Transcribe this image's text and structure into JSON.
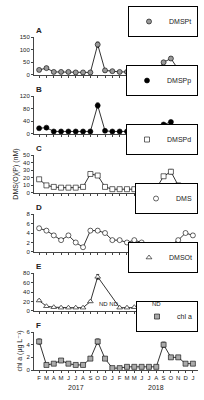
{
  "chart_data": [
    {
      "type": "line",
      "title": "A",
      "categories": [
        "F",
        "M",
        "A",
        "M",
        "J",
        "J",
        "A",
        "S",
        "O",
        "D",
        "J",
        "F",
        "M",
        "M",
        "J",
        "J",
        "A",
        "S",
        "O",
        "N",
        "D",
        "J"
      ],
      "series": [
        {
          "name": "DMSPt",
          "color": "#999999",
          "marker": "circle",
          "values": [
            20,
            27,
            12,
            12,
            12,
            10,
            10,
            10,
            120,
            18,
            15,
            12,
            12,
            10,
            10,
            10,
            12,
            50,
            65,
            22,
            18,
            15
          ],
          "errors": [
            2,
            2,
            1,
            1,
            1,
            1,
            1,
            1,
            10,
            2,
            2,
            2,
            2,
            1,
            1,
            1,
            2,
            5,
            5,
            2,
            2,
            2
          ]
        }
      ],
      "ylim": [
        0,
        150
      ],
      "yticks": [
        0,
        50,
        100,
        150
      ],
      "grid": false,
      "legend": "above",
      "tick_labels": "y"
    },
    {
      "type": "line",
      "title": "B",
      "categories": [
        "F",
        "M",
        "A",
        "M",
        "J",
        "J",
        "A",
        "S",
        "O",
        "D",
        "J",
        "F",
        "M",
        "M",
        "J",
        "J",
        "A",
        "S",
        "O",
        "N",
        "D",
        "J"
      ],
      "series": [
        {
          "name": "DMSPp",
          "color": "#000000",
          "marker": "circle",
          "values": [
            18,
            20,
            8,
            8,
            8,
            8,
            8,
            8,
            90,
            10,
            8,
            8,
            8,
            8,
            8,
            8,
            8,
            30,
            38,
            10,
            8,
            8
          ],
          "errors": [
            2,
            2,
            1,
            1,
            1,
            1,
            1,
            1,
            8,
            1,
            1,
            1,
            1,
            1,
            1,
            1,
            1,
            3,
            3,
            1,
            1,
            1
          ]
        }
      ],
      "ylim": [
        0,
        120
      ],
      "yticks": [
        0,
        40,
        80,
        120
      ],
      "grid": false,
      "legend": "above",
      "tick_labels": "y"
    },
    {
      "type": "line",
      "title": "C",
      "ylabel": "DMS(O)(P) (nM)",
      "categories": [
        "F",
        "M",
        "A",
        "M",
        "J",
        "J",
        "A",
        "S",
        "O",
        "D",
        "J",
        "F",
        "M",
        "M",
        "J",
        "J",
        "A",
        "S",
        "O",
        "N",
        "D",
        "J"
      ],
      "series": [
        {
          "name": "DMSPd",
          "color": "#ffffff",
          "marker": "square",
          "values": [
            18,
            10,
            8,
            7,
            7,
            7,
            8,
            25,
            23,
            8,
            5,
            5,
            5,
            5,
            4,
            5,
            6,
            22,
            28,
            10,
            8,
            5
          ],
          "errors": [
            2,
            1,
            1,
            1,
            1,
            1,
            1,
            2,
            2,
            1,
            1,
            1,
            1,
            1,
            1,
            1,
            1,
            2,
            3,
            1,
            1,
            1
          ]
        }
      ],
      "ylim": [
        0,
        50
      ],
      "yticks": [
        0,
        10,
        20,
        30,
        40,
        50
      ],
      "grid": false,
      "legend": "above",
      "tick_labels": "y"
    },
    {
      "type": "line",
      "title": "D",
      "categories": [
        "F",
        "M",
        "A",
        "M",
        "J",
        "J",
        "A",
        "S",
        "O",
        "D",
        "J",
        "F",
        "M",
        "M",
        "J",
        "J",
        "A",
        "S",
        "O",
        "N",
        "D",
        "J"
      ],
      "series": [
        {
          "name": "DMS",
          "color": "#ffffff",
          "marker": "circle",
          "values": [
            5.0,
            4.5,
            3.5,
            2.5,
            3.5,
            2.0,
            1.0,
            4.5,
            4.5,
            4.0,
            2.5,
            2.5,
            2.0,
            2.5,
            2.0,
            1.5,
            1.0,
            0.5,
            1.5,
            2.5,
            4.0,
            3.5
          ],
          "errors": [
            0.3,
            0.3,
            0.3,
            0.2,
            0.3,
            0.2,
            0.1,
            0.3,
            0.3,
            0.3,
            0.2,
            0.2,
            0.2,
            0.2,
            0.2,
            0.2,
            0.1,
            0.1,
            0.2,
            0.2,
            0.3,
            0.3
          ]
        }
      ],
      "ylim": [
        0,
        8
      ],
      "yticks": [
        0,
        2,
        4,
        6,
        8
      ],
      "grid": false,
      "legend": "above",
      "tick_labels": "y"
    },
    {
      "type": "line",
      "title": "E",
      "categories": [
        "F",
        "M",
        "A",
        "M",
        "J",
        "J",
        "A",
        "S",
        "O",
        "D",
        "J",
        "F",
        "M",
        "M",
        "J",
        "J",
        "A",
        "S",
        "O",
        "N",
        "D",
        "J"
      ],
      "series": [
        {
          "name": "DMSOt",
          "color": "#ffffff",
          "marker": "triangle",
          "values": [
            22,
            10,
            8,
            7,
            7,
            7,
            7,
            20,
            72,
            null,
            null,
            7,
            7,
            8,
            7,
            7,
            null,
            5,
            15,
            8,
            5,
            5
          ],
          "errors": [
            2,
            1,
            1,
            1,
            1,
            1,
            1,
            2,
            5,
            null,
            null,
            1,
            1,
            1,
            1,
            1,
            null,
            1,
            2,
            1,
            1,
            1
          ]
        }
      ],
      "ylim": [
        0,
        80
      ],
      "yticks": [
        0,
        20,
        40,
        60,
        80
      ],
      "annotations": [
        {
          "text": "ND ND",
          "x": 9.5,
          "y": 4.8
        },
        {
          "text": "ND",
          "x": 16,
          "y": 4.8
        }
      ],
      "grid": false,
      "legend": "above",
      "tick_labels": "y"
    },
    {
      "type": "line",
      "title": "F",
      "ylabel": "chl a (µg L⁻¹)",
      "categories": [
        "F",
        "M",
        "A",
        "M",
        "J",
        "J",
        "A",
        "S",
        "O",
        "D",
        "J",
        "F",
        "M",
        "M",
        "J",
        "J",
        "A",
        "S",
        "O",
        "N",
        "D",
        "J"
      ],
      "series": [
        {
          "name": "chl a",
          "color": "#aaaaaa",
          "marker": "square",
          "values": [
            4.5,
            0.8,
            1.0,
            1.5,
            1.0,
            0.8,
            0.8,
            1.8,
            4.5,
            1.8,
            0.3,
            0.3,
            0.5,
            0.5,
            0.5,
            0.5,
            0.5,
            4.0,
            2.0,
            2.0,
            1.0,
            1.0
          ],
          "errors": [
            0.4,
            0.1,
            0.1,
            0.1,
            0.1,
            0.1,
            0.1,
            0.2,
            0.4,
            0.2,
            0.05,
            0.05,
            0.05,
            0.05,
            0.05,
            0.05,
            0.05,
            0.4,
            0.2,
            0.2,
            0.1,
            0.1
          ]
        }
      ],
      "ylim": [
        0,
        6
      ],
      "yticks": [
        0,
        2,
        4,
        6
      ],
      "annotations": [
        {
          "text": "2017",
          "x": 5
        },
        {
          "text": "2018",
          "x": 16
        }
      ],
      "grid": false,
      "legend": "above"
    }
  ]
}
